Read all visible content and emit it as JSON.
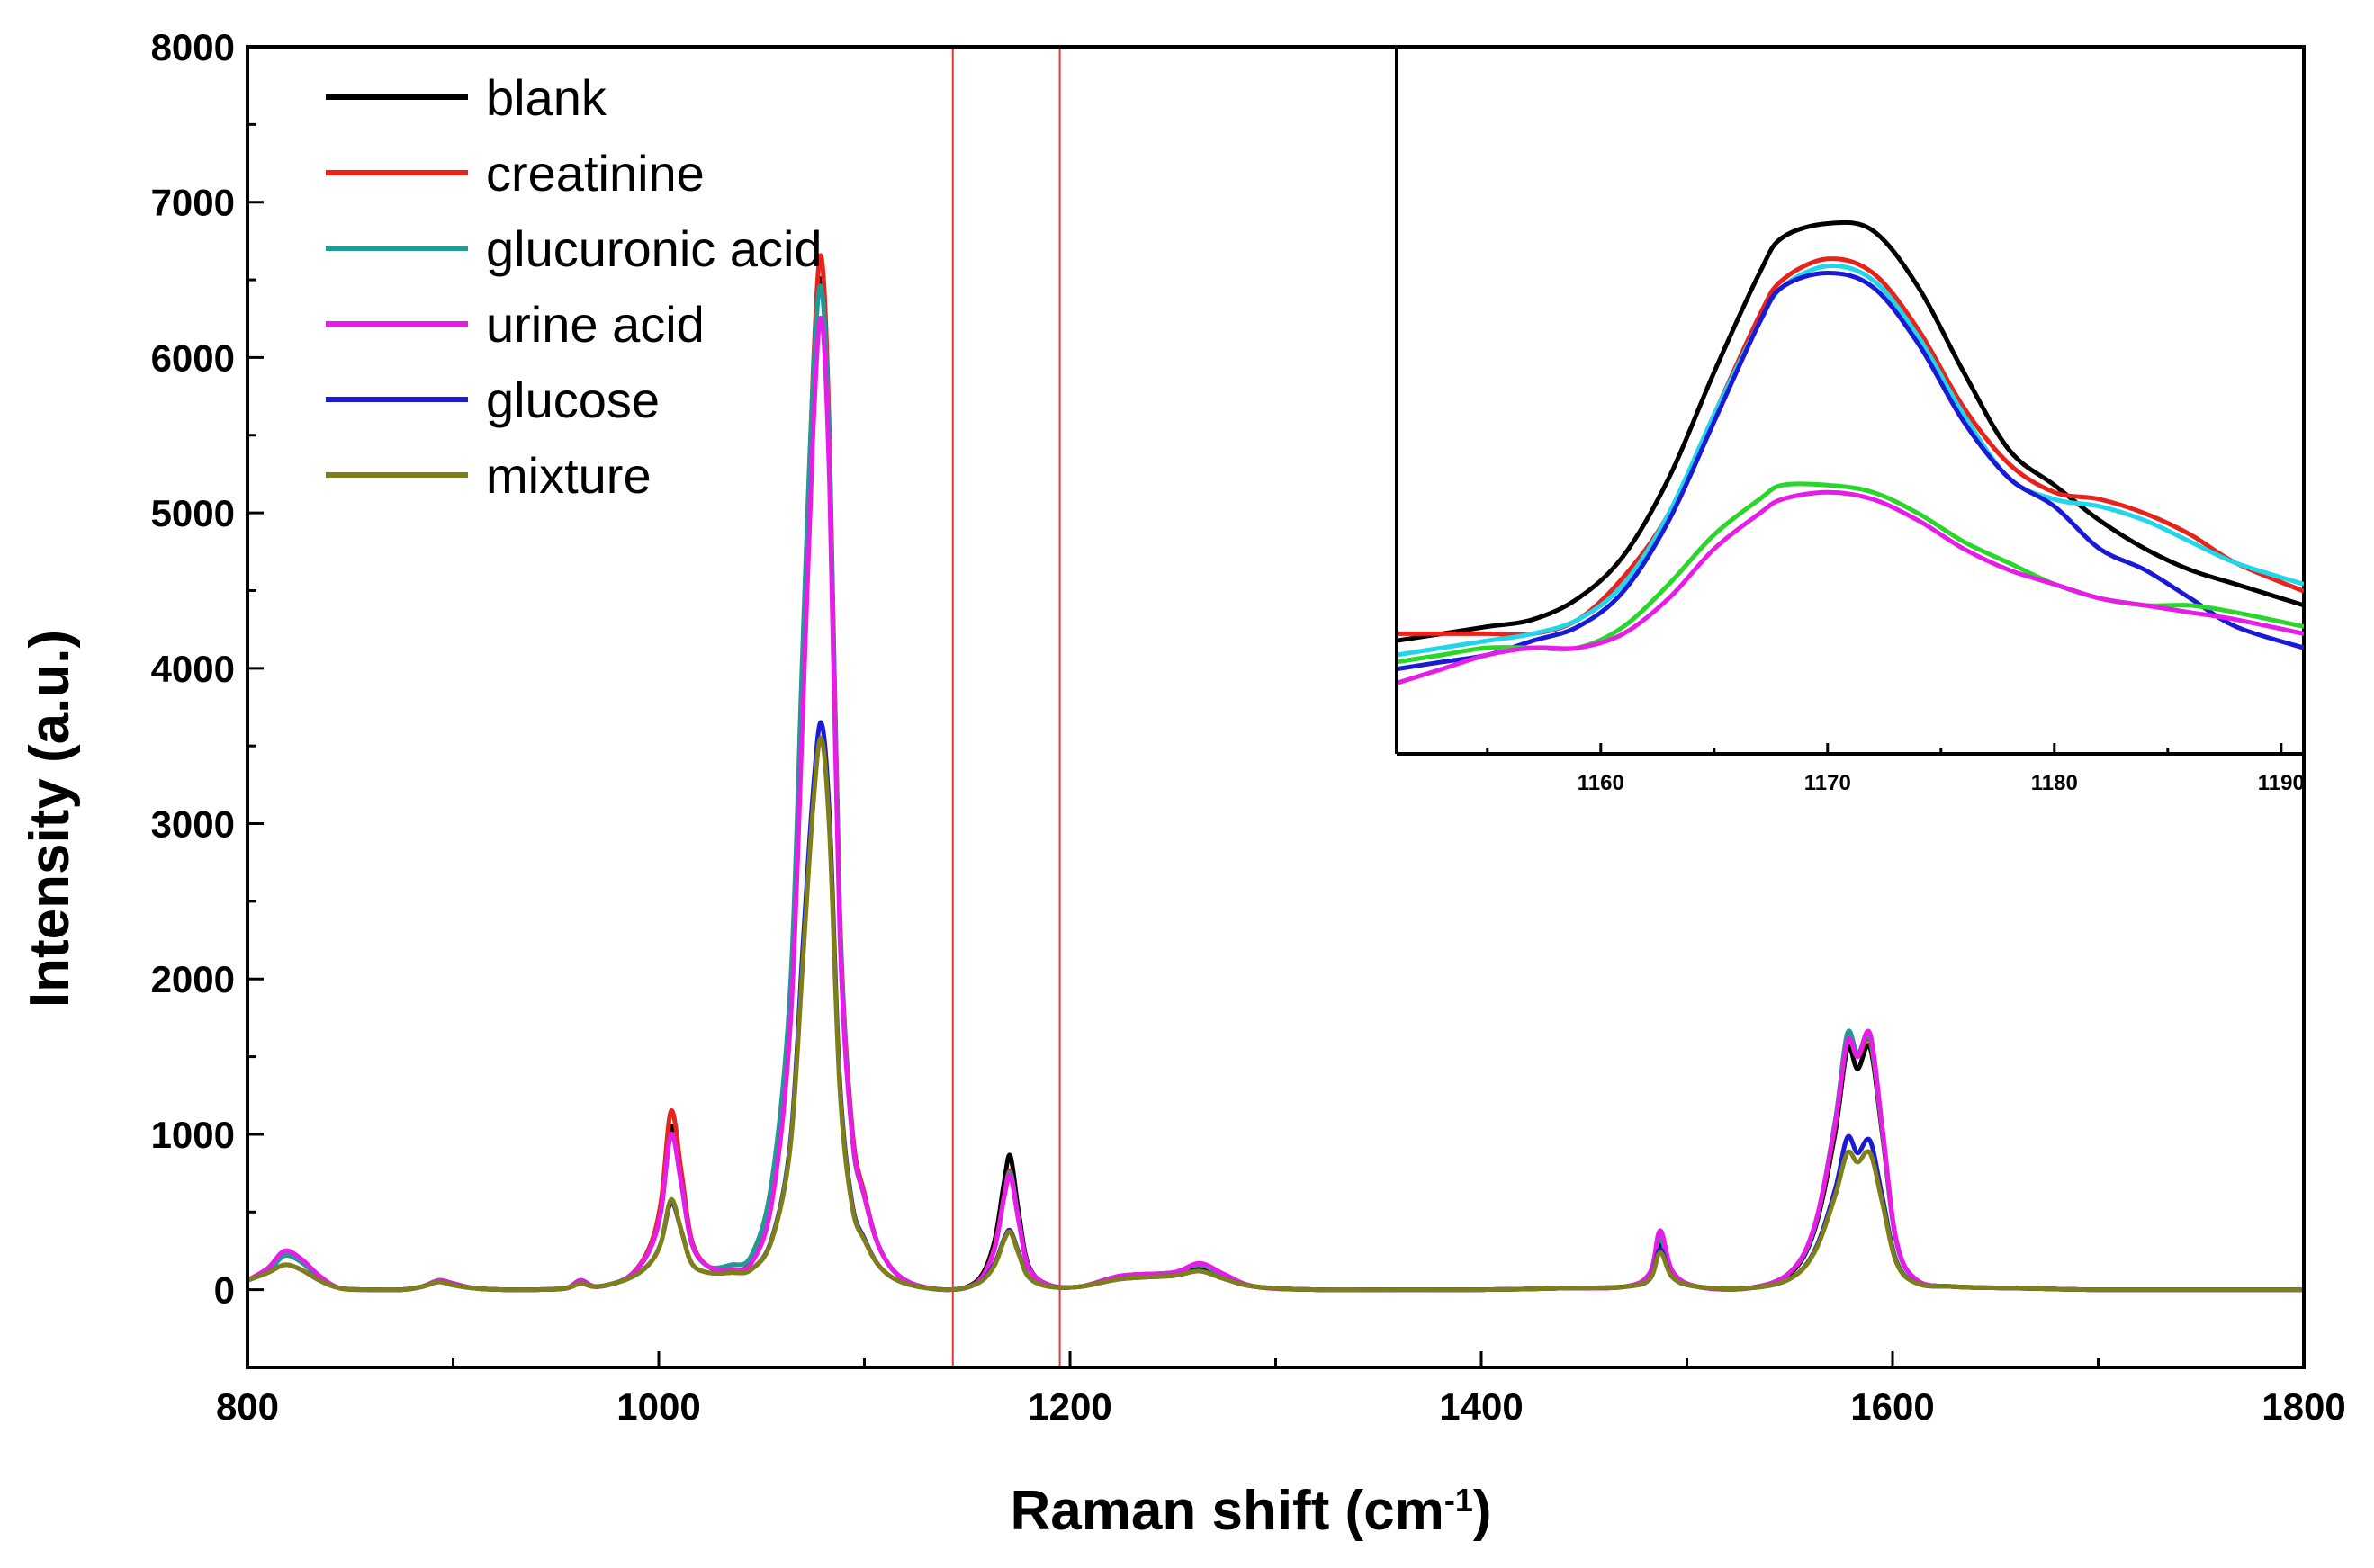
{
  "chart_data": [
    {
      "type": "line",
      "xlabel_main": "Raman shift (cm",
      "xlabel_sup": "-1",
      "xlabel_end": ")",
      "ylabel": "Intensity (a.u.)",
      "xlim": [
        800,
        1800
      ],
      "ylim": [
        -500,
        8000
      ],
      "x_ticks": [
        800,
        1000,
        1200,
        1400,
        1600,
        1800
      ],
      "y_ticks": [
        0,
        1000,
        2000,
        3000,
        4000,
        5000,
        6000,
        7000,
        8000
      ],
      "highlight_range": [
        1143,
        1195
      ],
      "highlight_color": "#e03a3a",
      "legend": "top-left",
      "x": [
        800,
        810,
        818,
        826,
        835,
        845,
        860,
        875,
        885,
        893,
        900,
        910,
        925,
        940,
        955,
        962,
        970,
        985,
        995,
        1001,
        1006,
        1011,
        1016,
        1024,
        1035,
        1045,
        1055,
        1064,
        1070,
        1075,
        1079,
        1083,
        1088,
        1094,
        1100,
        1108,
        1120,
        1140,
        1155,
        1163,
        1168,
        1171,
        1175,
        1180,
        1190,
        1205,
        1225,
        1250,
        1263,
        1275,
        1290,
        1320,
        1360,
        1400,
        1440,
        1470,
        1482,
        1487,
        1493,
        1505,
        1530,
        1550,
        1562,
        1572,
        1578,
        1583,
        1589,
        1595,
        1602,
        1612,
        1630,
        1660,
        1700,
        1750,
        1800
      ],
      "series": [
        {
          "name": "blank",
          "color": "#000000",
          "values": [
            60,
            120,
            220,
            180,
            80,
            10,
            0,
            0,
            20,
            60,
            40,
            10,
            0,
            0,
            10,
            60,
            20,
            80,
            250,
            500,
            1050,
            700,
            300,
            150,
            130,
            180,
            600,
            1800,
            4000,
            5800,
            6500,
            5400,
            2400,
            1000,
            600,
            250,
            60,
            0,
            60,
            300,
            700,
            860,
            500,
            150,
            30,
            20,
            80,
            100,
            140,
            80,
            20,
            0,
            0,
            0,
            10,
            20,
            80,
            300,
            100,
            20,
            10,
            100,
            380,
            1000,
            1550,
            1420,
            1560,
            1000,
            300,
            60,
            20,
            10,
            0,
            0,
            0
          ]
        },
        {
          "name": "creatinine",
          "color": "#e8231b",
          "values": [
            60,
            120,
            220,
            180,
            80,
            10,
            0,
            0,
            20,
            60,
            40,
            10,
            0,
            0,
            10,
            60,
            20,
            80,
            260,
            560,
            1150,
            760,
            320,
            150,
            130,
            180,
            620,
            1850,
            4100,
            5900,
            6650,
            5500,
            2450,
            1050,
            620,
            250,
            60,
            0,
            50,
            260,
            610,
            760,
            450,
            140,
            30,
            20,
            90,
            110,
            160,
            90,
            20,
            0,
            0,
            0,
            10,
            20,
            100,
            340,
            110,
            20,
            10,
            110,
            400,
            1050,
            1600,
            1500,
            1600,
            1020,
            300,
            60,
            20,
            10,
            0,
            0,
            0
          ]
        },
        {
          "name": "glucuronic acid",
          "color": "#1f9a96",
          "values": [
            60,
            120,
            220,
            180,
            80,
            10,
            0,
            0,
            20,
            60,
            40,
            10,
            0,
            0,
            10,
            60,
            20,
            80,
            240,
            500,
            1000,
            680,
            300,
            150,
            160,
            220,
            700,
            1950,
            4150,
            5850,
            6450,
            5400,
            2400,
            1000,
            600,
            250,
            60,
            0,
            50,
            250,
            600,
            750,
            450,
            140,
            30,
            20,
            90,
            110,
            160,
            90,
            20,
            0,
            0,
            0,
            10,
            20,
            100,
            330,
            110,
            20,
            10,
            110,
            400,
            1080,
            1650,
            1520,
            1620,
            1030,
            300,
            60,
            20,
            10,
            0,
            0,
            0
          ]
        },
        {
          "name": "urine acid",
          "color": "#e81ce8",
          "values": [
            60,
            140,
            250,
            200,
            90,
            10,
            0,
            0,
            20,
            60,
            40,
            10,
            0,
            0,
            10,
            60,
            20,
            80,
            240,
            500,
            1000,
            680,
            300,
            150,
            130,
            170,
            560,
            1700,
            3700,
            5500,
            6250,
            5200,
            2300,
            1000,
            600,
            250,
            60,
            0,
            50,
            250,
            600,
            730,
            440,
            140,
            30,
            20,
            90,
            110,
            170,
            100,
            20,
            0,
            0,
            0,
            10,
            20,
            110,
            380,
            120,
            20,
            10,
            110,
            410,
            1060,
            1600,
            1500,
            1650,
            1050,
            310,
            60,
            20,
            10,
            0,
            0,
            0
          ]
        },
        {
          "name": "glucose",
          "color": "#1a1ad6",
          "values": [
            60,
            110,
            160,
            130,
            60,
            10,
            0,
            0,
            20,
            50,
            30,
            10,
            0,
            0,
            10,
            40,
            20,
            70,
            160,
            300,
            560,
            380,
            170,
            110,
            110,
            130,
            330,
            950,
            2200,
            3200,
            3650,
            3050,
            1350,
            560,
            330,
            140,
            40,
            0,
            40,
            160,
            330,
            380,
            240,
            80,
            20,
            20,
            70,
            90,
            120,
            70,
            20,
            0,
            0,
            0,
            10,
            20,
            70,
            260,
            80,
            20,
            10,
            70,
            250,
            640,
            980,
            880,
            960,
            600,
            180,
            40,
            20,
            10,
            0,
            0,
            0
          ]
        },
        {
          "name": "mixture",
          "color": "#7f7f1a",
          "values": [
            60,
            110,
            160,
            130,
            60,
            10,
            0,
            0,
            20,
            50,
            30,
            10,
            0,
            0,
            10,
            40,
            20,
            70,
            160,
            300,
            580,
            380,
            170,
            110,
            110,
            130,
            320,
            920,
            2100,
            3100,
            3550,
            2950,
            1300,
            540,
            320,
            140,
            40,
            0,
            40,
            150,
            320,
            370,
            230,
            80,
            20,
            20,
            70,
            90,
            120,
            70,
            20,
            0,
            0,
            0,
            10,
            20,
            70,
            240,
            80,
            20,
            10,
            70,
            240,
            600,
            880,
            820,
            880,
            560,
            170,
            40,
            20,
            10,
            0,
            0,
            0
          ]
        }
      ]
    },
    {
      "type": "line",
      "role": "inset",
      "xlim": [
        1151,
        1191
      ],
      "ylim": [
        0,
        100
      ],
      "x_ticks": [
        1160,
        1170,
        1180,
        1190
      ],
      "x": [
        1151,
        1153,
        1155,
        1157,
        1159,
        1161,
        1163,
        1165,
        1167,
        1168,
        1170,
        1172,
        1174,
        1176,
        1178,
        1180,
        1182,
        1184,
        1186,
        1188,
        1191
      ],
      "series": [
        {
          "name": "blank",
          "color": "#000000",
          "values": [
            16,
            17,
            18,
            19,
            22,
            28,
            39,
            54,
            68,
            73,
            75,
            74,
            66,
            54,
            43,
            38,
            33,
            29,
            26,
            24,
            21
          ]
        },
        {
          "name": "creatinine",
          "color": "#e8231b",
          "values": [
            17,
            17,
            17,
            17,
            19,
            25,
            34,
            48,
            62,
            67,
            70,
            68,
            60,
            49,
            41,
            37,
            36,
            34,
            31,
            27,
            23
          ]
        },
        {
          "name": "cyan",
          "color": "#21d6e8",
          "values": [
            14,
            15,
            16,
            17,
            19,
            24,
            34,
            48,
            61,
            66,
            69,
            67,
            59,
            48,
            39,
            36,
            35,
            33,
            30,
            27,
            24
          ]
        },
        {
          "name": "glucose",
          "color": "#1a1ad6",
          "values": [
            12,
            13,
            14,
            16,
            18,
            23,
            33,
            47,
            61,
            66,
            68,
            66,
            58,
            47,
            39,
            35,
            29,
            26,
            22,
            18,
            15
          ]
        },
        {
          "name": "green",
          "color": "#2ad62a",
          "values": [
            13,
            14,
            15,
            15,
            15,
            18,
            24,
            31,
            36,
            38,
            38,
            37,
            34,
            30,
            27,
            24,
            22,
            21,
            21,
            20,
            18
          ]
        },
        {
          "name": "urine acid",
          "color": "#e81ce8",
          "values": [
            10,
            12,
            14,
            15,
            15,
            17,
            22,
            29,
            34,
            36,
            37,
            36,
            33,
            29,
            26,
            24,
            22,
            21,
            20,
            19,
            17
          ]
        }
      ]
    }
  ]
}
